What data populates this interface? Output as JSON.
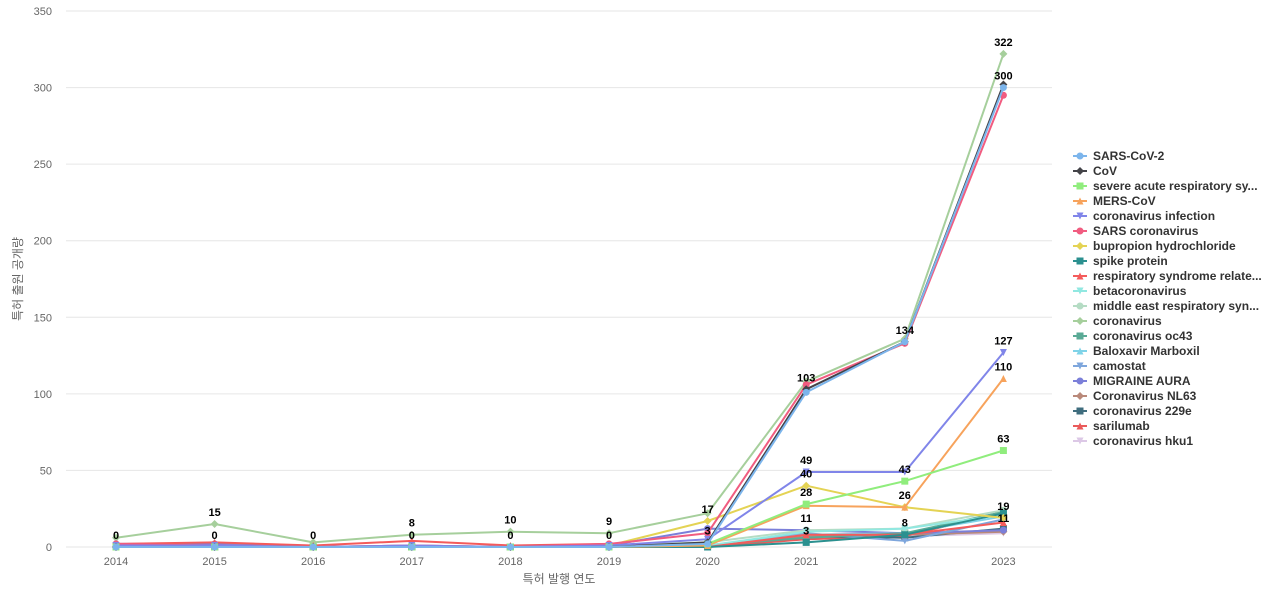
{
  "chart_data": {
    "type": "line",
    "title": "",
    "xlabel": "특허 발행 연도",
    "ylabel": "특허 출원 공개량",
    "ylim": [
      0,
      350
    ],
    "y_ticks": [
      0,
      50,
      100,
      150,
      200,
      250,
      300,
      350
    ],
    "categories": [
      "2014",
      "2015",
      "2016",
      "2017",
      "2018",
      "2019",
      "2020",
      "2021",
      "2022",
      "2023"
    ],
    "grid": true,
    "legend_position": "right",
    "series": [
      {
        "name": "SARS-CoV-2",
        "color": "#7cb5ec",
        "marker": "circle",
        "values": [
          0,
          0,
          0,
          0,
          0,
          0,
          2,
          101,
          134,
          300
        ]
      },
      {
        "name": "CoV",
        "color": "#434348",
        "marker": "diamond",
        "values": [
          0,
          0,
          0,
          0,
          0,
          0,
          3,
          103,
          134,
          302
        ]
      },
      {
        "name": "severe acute respiratory sy...",
        "color": "#90ed7d",
        "marker": "square",
        "values": [
          0,
          0,
          0,
          0,
          0,
          0,
          2,
          28,
          43,
          63
        ]
      },
      {
        "name": "MERS-CoV",
        "color": "#f7a35c",
        "marker": "triangle",
        "values": [
          0,
          0,
          0,
          0,
          0,
          0,
          1,
          27,
          26,
          110
        ]
      },
      {
        "name": "coronavirus infection",
        "color": "#8085e9",
        "marker": "triangle-down",
        "values": [
          1,
          1,
          0,
          1,
          0,
          1,
          5,
          49,
          49,
          127
        ]
      },
      {
        "name": "SARS coronavirus",
        "color": "#f15c80",
        "marker": "circle",
        "values": [
          2,
          1,
          0,
          1,
          0,
          2,
          9,
          106,
          133,
          295
        ]
      },
      {
        "name": "bupropion hydrochloride",
        "color": "#e4d354",
        "marker": "diamond",
        "values": [
          0,
          0,
          0,
          0,
          0,
          1,
          17,
          40,
          26,
          19
        ]
      },
      {
        "name": "spike protein",
        "color": "#2b908f",
        "marker": "square",
        "values": [
          0,
          0,
          0,
          0,
          0,
          0,
          0,
          3,
          8,
          22
        ]
      },
      {
        "name": "respiratory syndrome relate...",
        "color": "#f45b5b",
        "marker": "triangle",
        "values": [
          2,
          3,
          1,
          4,
          1,
          2,
          0,
          8,
          8,
          16
        ]
      },
      {
        "name": "betacoronavirus",
        "color": "#91e8e1",
        "marker": "triangle-down",
        "values": [
          0,
          0,
          0,
          0,
          0,
          0,
          1,
          10,
          12,
          21
        ]
      },
      {
        "name": "middle east respiratory syn...",
        "color": "#b5dcc4",
        "marker": "circle",
        "values": [
          1,
          1,
          0,
          1,
          0,
          1,
          3,
          11,
          12,
          24
        ]
      },
      {
        "name": "coronavirus",
        "color": "#a6cf9c",
        "marker": "diamond",
        "values": [
          6,
          15,
          3,
          8,
          10,
          9,
          22,
          108,
          136,
          322
        ]
      },
      {
        "name": "coronavirus oc43",
        "color": "#5aaa95",
        "marker": "square",
        "values": [
          0,
          0,
          0,
          0,
          0,
          0,
          1,
          6,
          9,
          23
        ]
      },
      {
        "name": "Baloxavir Marboxil",
        "color": "#7fd3e8",
        "marker": "triangle",
        "values": [
          0,
          0,
          0,
          0,
          0,
          0,
          1,
          8,
          9,
          20
        ]
      },
      {
        "name": "camostat",
        "color": "#7ea6dc",
        "marker": "triangle-down",
        "values": [
          0,
          0,
          0,
          0,
          0,
          0,
          1,
          9,
          4,
          18
        ]
      },
      {
        "name": "MIGRAINE AURA",
        "color": "#7b7fd9",
        "marker": "circle",
        "values": [
          2,
          2,
          0,
          1,
          0,
          1,
          12,
          11,
          9,
          11
        ]
      },
      {
        "name": "Coronavirus NL63",
        "color": "#b9897a",
        "marker": "diamond",
        "values": [
          0,
          0,
          0,
          0,
          0,
          0,
          1,
          7,
          8,
          10
        ]
      },
      {
        "name": "coronavirus 229e",
        "color": "#3f6d7e",
        "marker": "square",
        "values": [
          0,
          0,
          0,
          0,
          0,
          0,
          1,
          7,
          6,
          12
        ]
      },
      {
        "name": "sarilumab",
        "color": "#ea5a5a",
        "marker": "triangle",
        "values": [
          0,
          0,
          0,
          0,
          0,
          0,
          0,
          5,
          7,
          23
        ]
      },
      {
        "name": "coronavirus hku1",
        "color": "#dcc8e6",
        "marker": "triangle-down",
        "values": [
          0,
          0,
          0,
          0,
          0,
          0,
          1,
          6,
          7,
          9
        ]
      }
    ],
    "data_labels": [
      {
        "x": "2014",
        "text": "0",
        "value": 0
      },
      {
        "x": "2015",
        "text": "15",
        "value": 15
      },
      {
        "x": "2015",
        "text": "0",
        "value": 0
      },
      {
        "x": "2016",
        "text": "0",
        "value": 0
      },
      {
        "x": "2017",
        "text": "8",
        "value": 8
      },
      {
        "x": "2017",
        "text": "0",
        "value": 0
      },
      {
        "x": "2018",
        "text": "10",
        "value": 10
      },
      {
        "x": "2018",
        "text": "0",
        "value": 0
      },
      {
        "x": "2019",
        "text": "9",
        "value": 9
      },
      {
        "x": "2019",
        "text": "0",
        "value": 0
      },
      {
        "x": "2020",
        "text": "17",
        "value": 17
      },
      {
        "x": "2020",
        "text": "3",
        "value": 3
      },
      {
        "x": "2021",
        "text": "103",
        "value": 103
      },
      {
        "x": "2021",
        "text": "49",
        "value": 49
      },
      {
        "x": "2021",
        "text": "40",
        "value": 40
      },
      {
        "x": "2021",
        "text": "28",
        "value": 28
      },
      {
        "x": "2021",
        "text": "11",
        "value": 11
      },
      {
        "x": "2021",
        "text": "3",
        "value": 3
      },
      {
        "x": "2022",
        "text": "134",
        "value": 134
      },
      {
        "x": "2022",
        "text": "43",
        "value": 43
      },
      {
        "x": "2022",
        "text": "26",
        "value": 26
      },
      {
        "x": "2022",
        "text": "8",
        "value": 8
      },
      {
        "x": "2023",
        "text": "322",
        "value": 322
      },
      {
        "x": "2023",
        "text": "300",
        "value": 300
      },
      {
        "x": "2023",
        "text": "127",
        "value": 127
      },
      {
        "x": "2023",
        "text": "110",
        "value": 110
      },
      {
        "x": "2023",
        "text": "63",
        "value": 63
      },
      {
        "x": "2023",
        "text": "19",
        "value": 19
      },
      {
        "x": "2023",
        "text": "11",
        "value": 11
      }
    ]
  }
}
